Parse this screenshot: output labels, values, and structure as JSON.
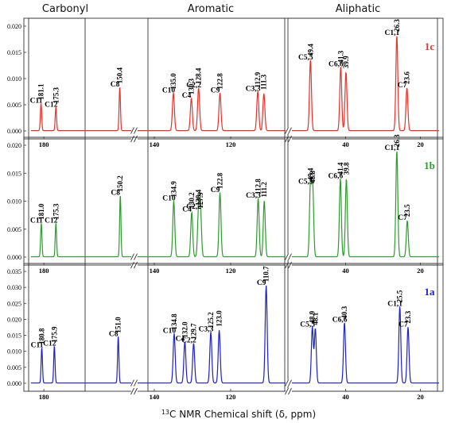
{
  "chart_data": {
    "type": "line",
    "region_titles": [
      "Carbonyl",
      "Aromatic",
      "Aliphatic"
    ],
    "xlabel_sup": "13",
    "xlabel_main": "C NMR Chemical shift (δ, ppm)",
    "x_axis": {
      "reversed": true,
      "segments": [
        {
          "name": "Carbonyl",
          "range": [
            185,
            145
          ],
          "ticks": [
            180
          ]
        },
        {
          "name": "Aromatic",
          "range": [
            145,
            105
          ],
          "ticks": [
            140,
            120
          ]
        },
        {
          "name": "Aliphatic",
          "range": [
            55,
            15
          ],
          "ticks": [
            40,
            20
          ]
        }
      ]
    },
    "panels": [
      {
        "compound": "1c",
        "color": "#e8312a",
        "ylim": [
          0,
          0.02
        ],
        "yticks": [
          "0.000",
          "0.005",
          "0.010",
          "0.015",
          "0.020"
        ],
        "peaks": [
          {
            "label": "C11",
            "shift": 181.1,
            "shift_label": "181.1",
            "intensity": 0.0052
          },
          {
            "label": "C12",
            "shift": 175.3,
            "shift_label": "175.3",
            "intensity": 0.0045
          },
          {
            "label": "C8",
            "shift": 150.4,
            "shift_label": "150.4",
            "intensity": 0.0083
          },
          {
            "label": "C10",
            "shift": 135.0,
            "shift_label": "135.0",
            "intensity": 0.0072
          },
          {
            "label": "C4",
            "shift": 130.3,
            "shift_label": "130.3",
            "intensity": 0.0062
          },
          {
            "label": "C2,2",
            "shift": 128.4,
            "shift_label": "128.4",
            "intensity": 0.0082
          },
          {
            "label": "C9",
            "shift": 122.8,
            "shift_label": "122.8",
            "intensity": 0.0072
          },
          {
            "label": "C3,3",
            "shift": 112.9,
            "shift_label": "112.9",
            "intensity": 0.0075
          },
          {
            "label": "",
            "shift": 111.3,
            "shift_label": "111.3",
            "intensity": 0.0071
          },
          {
            "label": "C5,5",
            "shift": 49.4,
            "shift_label": "49.4",
            "intensity": 0.0135
          },
          {
            "label": "C6,6",
            "shift": 41.3,
            "shift_label": "41.3",
            "intensity": 0.0122
          },
          {
            "label": "",
            "shift": 39.9,
            "shift_label": "39.9",
            "intensity": 0.0112
          },
          {
            "label": "C1,1",
            "shift": 26.3,
            "shift_label": "26.3",
            "intensity": 0.0182
          },
          {
            "label": "C7",
            "shift": 23.6,
            "shift_label": "23.6",
            "intensity": 0.0082
          }
        ]
      },
      {
        "compound": "1b",
        "color": "#2e9b2e",
        "ylim": [
          0,
          0.02
        ],
        "yticks": [
          "0.000",
          "0.005",
          "0.010",
          "0.015",
          "0.020"
        ],
        "peaks": [
          {
            "label": "C11",
            "shift": 181.0,
            "shift_label": "181.0",
            "intensity": 0.006
          },
          {
            "label": "C12",
            "shift": 175.3,
            "shift_label": "175.3",
            "intensity": 0.006
          },
          {
            "label": "C8",
            "shift": 150.2,
            "shift_label": "150.2",
            "intensity": 0.011
          },
          {
            "label": "C10",
            "shift": 134.9,
            "shift_label": "134.9",
            "intensity": 0.01
          },
          {
            "label": "C4",
            "shift": 130.2,
            "shift_label": "130.2",
            "intensity": 0.008
          },
          {
            "label": "C2,2",
            "shift": 128.4,
            "shift_label": "128.4",
            "intensity": 0.0085
          },
          {
            "label": "",
            "shift": 127.9,
            "shift_label": "127.9",
            "intensity": 0.008
          },
          {
            "label": "C9",
            "shift": 122.8,
            "shift_label": "122.8",
            "intensity": 0.0115
          },
          {
            "label": "C3,3",
            "shift": 112.8,
            "shift_label": "112.8",
            "intensity": 0.0105
          },
          {
            "label": "",
            "shift": 111.2,
            "shift_label": "111.2",
            "intensity": 0.01
          },
          {
            "label": "C5,5",
            "shift": 49.4,
            "shift_label": "49.4",
            "intensity": 0.013
          },
          {
            "label": "",
            "shift": 48.8,
            "shift_label": "48.8",
            "intensity": 0.0125
          },
          {
            "label": "C6,6",
            "shift": 41.4,
            "shift_label": "41.4",
            "intensity": 0.014
          },
          {
            "label": "",
            "shift": 39.8,
            "shift_label": "39.8",
            "intensity": 0.014
          },
          {
            "label": "C1,1",
            "shift": 26.3,
            "shift_label": "26.3",
            "intensity": 0.019
          },
          {
            "label": "C7",
            "shift": 23.5,
            "shift_label": "23.5",
            "intensity": 0.0065
          }
        ]
      },
      {
        "compound": "1a",
        "color": "#1f1fcc",
        "ylim": [
          0,
          0.035
        ],
        "yticks": [
          "0.000",
          "0.005",
          "0.010",
          "0.015",
          "0.020",
          "0.025",
          "0.030",
          "0.035"
        ],
        "peaks": [
          {
            "label": "C11",
            "shift": 180.8,
            "shift_label": "180.8",
            "intensity": 0.011
          },
          {
            "label": "C12",
            "shift": 175.9,
            "shift_label": "175.9",
            "intensity": 0.0115
          },
          {
            "label": "C8",
            "shift": 151.0,
            "shift_label": "151.0",
            "intensity": 0.0145
          },
          {
            "label": "C10",
            "shift": 134.8,
            "shift_label": "134.8",
            "intensity": 0.0155
          },
          {
            "label": "C4",
            "shift": 132.0,
            "shift_label": "132.0",
            "intensity": 0.013
          },
          {
            "label": "C2,2",
            "shift": 129.7,
            "shift_label": "129.7",
            "intensity": 0.0125
          },
          {
            "label": "C3,3",
            "shift": 125.2,
            "shift_label": "125.2",
            "intensity": 0.016
          },
          {
            "label": "",
            "shift": 123.0,
            "shift_label": "123.0",
            "intensity": 0.0165
          },
          {
            "label": "C9",
            "shift": 110.7,
            "shift_label": "110.7",
            "intensity": 0.0305
          },
          {
            "label": "C5,5",
            "shift": 48.9,
            "shift_label": "48.9",
            "intensity": 0.0175
          },
          {
            "label": "",
            "shift": 48.1,
            "shift_label": "48.1",
            "intensity": 0.017
          },
          {
            "label": "C6,6",
            "shift": 40.3,
            "shift_label": "40.3",
            "intensity": 0.019
          },
          {
            "label": "C1,1",
            "shift": 25.5,
            "shift_label": "25.5",
            "intensity": 0.024
          },
          {
            "label": "C7",
            "shift": 23.3,
            "shift_label": "23.3",
            "intensity": 0.0175
          }
        ]
      }
    ]
  }
}
